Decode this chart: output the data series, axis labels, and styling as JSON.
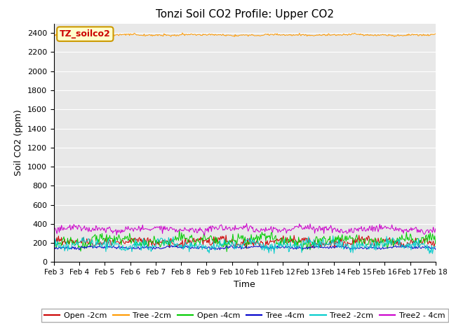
{
  "title": "Tonzi Soil CO2 Profile: Upper CO2",
  "ylabel": "Soil CO2 (ppm)",
  "xlabel": "Time",
  "ylim": [
    0,
    2500
  ],
  "yticks": [
    0,
    200,
    400,
    600,
    800,
    1000,
    1200,
    1400,
    1600,
    1800,
    2000,
    2200,
    2400
  ],
  "xtick_labels": [
    "Feb 3",
    "Feb 4",
    "Feb 5",
    "Feb 6",
    "Feb 7",
    "Feb 8",
    "Feb 9",
    "Feb 10",
    "Feb 11",
    "Feb 12",
    "Feb 13",
    "Feb 14",
    "Feb 15",
    "Feb 16",
    "Feb 17",
    "Feb 18"
  ],
  "n_points": 500,
  "series": [
    {
      "label": "Open -2cm",
      "color": "#cc0000",
      "base": 210,
      "amp": 35,
      "noise": 22,
      "seed": 1
    },
    {
      "label": "Tree -2cm",
      "color": "#ff9900",
      "base": 2380,
      "amp": 8,
      "noise": 5,
      "seed": 2
    },
    {
      "label": "Open -4cm",
      "color": "#00cc00",
      "base": 225,
      "amp": 55,
      "noise": 28,
      "seed": 3
    },
    {
      "label": "Tree -4cm",
      "color": "#0000cc",
      "base": 152,
      "amp": 12,
      "noise": 8,
      "seed": 4
    },
    {
      "label": "Tree2 -2cm",
      "color": "#00cccc",
      "base": 180,
      "amp": 45,
      "noise": 28,
      "seed": 5
    },
    {
      "label": "Tree2 - 4cm",
      "color": "#cc00cc",
      "base": 345,
      "amp": 28,
      "noise": 18,
      "seed": 6
    }
  ],
  "legend_title": "TZ_soilco2",
  "legend_title_color": "#cc0000",
  "legend_box_facecolor": "#ffffcc",
  "legend_box_edgecolor": "#cc9900",
  "bg_color": "#e8e8e8",
  "fig_bg": "#ffffff"
}
